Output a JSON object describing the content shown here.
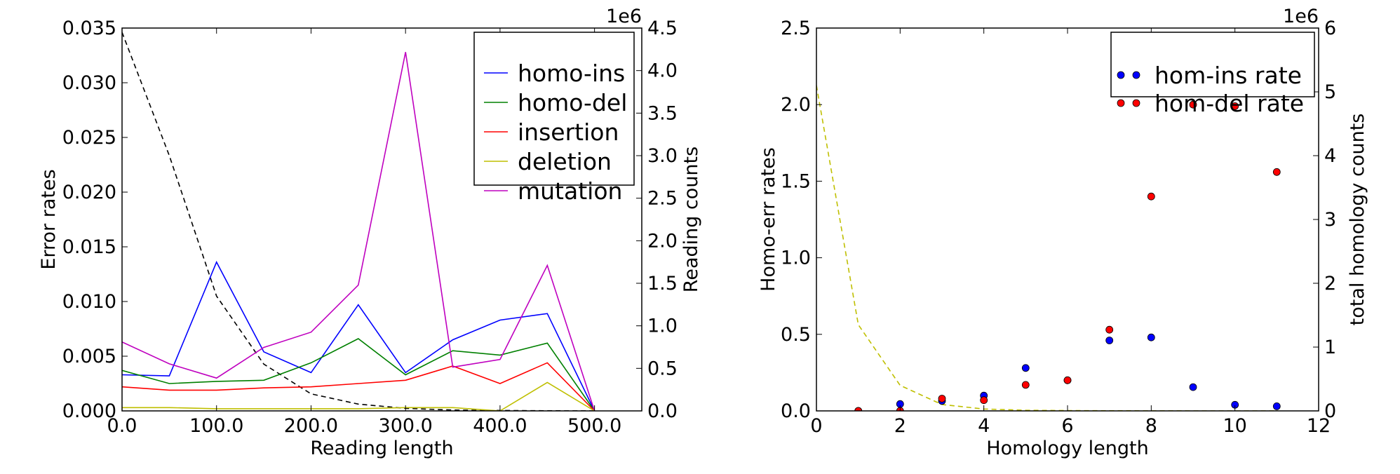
{
  "chart_data": [
    {
      "type": "line",
      "xlabel": "Reading length",
      "ylabel": "Error rates",
      "y2label": "Reading counts",
      "y2_offset_text": "1e6",
      "xlim": [
        0,
        550
      ],
      "ylim": [
        0,
        0.035
      ],
      "y2lim": [
        0,
        4.5
      ],
      "x_ticks": [
        "0.0",
        "100.0",
        "200.0",
        "300.0",
        "400.0",
        "500.0"
      ],
      "y_ticks": [
        "0.000",
        "0.005",
        "0.010",
        "0.015",
        "0.020",
        "0.025",
        "0.030",
        "0.035"
      ],
      "y2_ticks": [
        "0.0",
        "0.5",
        "1.0",
        "1.5",
        "2.0",
        "2.5",
        "3.0",
        "3.5",
        "4.0",
        "4.5"
      ],
      "legend_position": "top-right",
      "x": [
        0,
        50,
        100,
        150,
        200,
        250,
        300,
        350,
        400,
        450,
        500
      ],
      "series": [
        {
          "name": "homo-ins",
          "color": "#0000ff",
          "values": [
            0.0033,
            0.0032,
            0.0136,
            0.0054,
            0.0035,
            0.0097,
            0.0035,
            0.0065,
            0.0083,
            0.0089,
            0.0
          ]
        },
        {
          "name": "homo-del",
          "color": "#008000",
          "values": [
            0.0037,
            0.0025,
            0.0027,
            0.0028,
            0.0044,
            0.0066,
            0.0033,
            0.0055,
            0.0051,
            0.0062,
            0.0
          ]
        },
        {
          "name": "insertion",
          "color": "#ff0000",
          "values": [
            0.0022,
            0.0019,
            0.0019,
            0.0021,
            0.0022,
            0.0025,
            0.0028,
            0.0041,
            0.0025,
            0.0044,
            0.0
          ]
        },
        {
          "name": "deletion",
          "color": "#bfbf00",
          "values": [
            0.0003,
            0.0003,
            0.0002,
            0.0002,
            0.0002,
            0.0002,
            0.0003,
            0.0003,
            0.0,
            0.0026,
            0.0
          ]
        },
        {
          "name": "mutation",
          "color": "#bf00bf",
          "values": [
            0.0063,
            0.0043,
            0.003,
            0.0058,
            0.0072,
            0.0115,
            0.0328,
            0.004,
            0.0047,
            0.0133,
            0.0
          ]
        }
      ],
      "secondary_series": {
        "axis": "y2",
        "style": "dashed",
        "color": "#000000",
        "x": [
          0,
          50,
          100,
          150,
          200,
          250,
          300,
          350,
          400,
          450,
          500
        ],
        "values": [
          4.45,
          3.0,
          1.35,
          0.55,
          0.2,
          0.08,
          0.03,
          0.01,
          0.005,
          0.002,
          0.0
        ]
      }
    },
    {
      "type": "scatter",
      "xlabel": "Homology length",
      "ylabel": "Homo-err rates",
      "y2label": "total homology counts",
      "y2_offset_text": "1e6",
      "xlim": [
        0,
        12
      ],
      "ylim": [
        0,
        2.5
      ],
      "y2lim": [
        0,
        6
      ],
      "x_ticks": [
        "0",
        "2",
        "4",
        "6",
        "8",
        "10",
        "12"
      ],
      "y_ticks": [
        "0.0",
        "0.5",
        "1.0",
        "1.5",
        "2.0",
        "2.5"
      ],
      "y2_ticks": [
        "0",
        "1",
        "2",
        "3",
        "4",
        "5",
        "6"
      ],
      "legend_position": "top-right",
      "series": [
        {
          "name": "hom-ins rate",
          "color": "#0000ff",
          "x": [
            1,
            2,
            3,
            4,
            5,
            6,
            7,
            8,
            9,
            10,
            11
          ],
          "values": [
            0.0,
            0.045,
            0.065,
            0.1,
            0.28,
            0.2,
            0.46,
            0.48,
            0.155,
            0.04,
            0.03
          ]
        },
        {
          "name": "hom-del rate",
          "color": "#ff0000",
          "x": [
            1,
            2,
            3,
            4,
            5,
            6,
            7,
            8,
            9,
            10,
            11
          ],
          "values": [
            0.0,
            0.0,
            0.08,
            0.07,
            0.17,
            0.2,
            0.53,
            1.4,
            2.0,
            1.99,
            1.56
          ]
        }
      ],
      "secondary_series": {
        "axis": "y2",
        "style": "dashed",
        "color": "#bfbf00",
        "x": [
          0,
          1,
          2,
          3,
          4,
          5,
          6,
          7,
          8,
          9,
          10,
          11
        ],
        "values": [
          5.1,
          1.35,
          0.4,
          0.1,
          0.03,
          0.01,
          0.005,
          0.002,
          0.001,
          0.0,
          0.0,
          0.0
        ]
      }
    }
  ]
}
